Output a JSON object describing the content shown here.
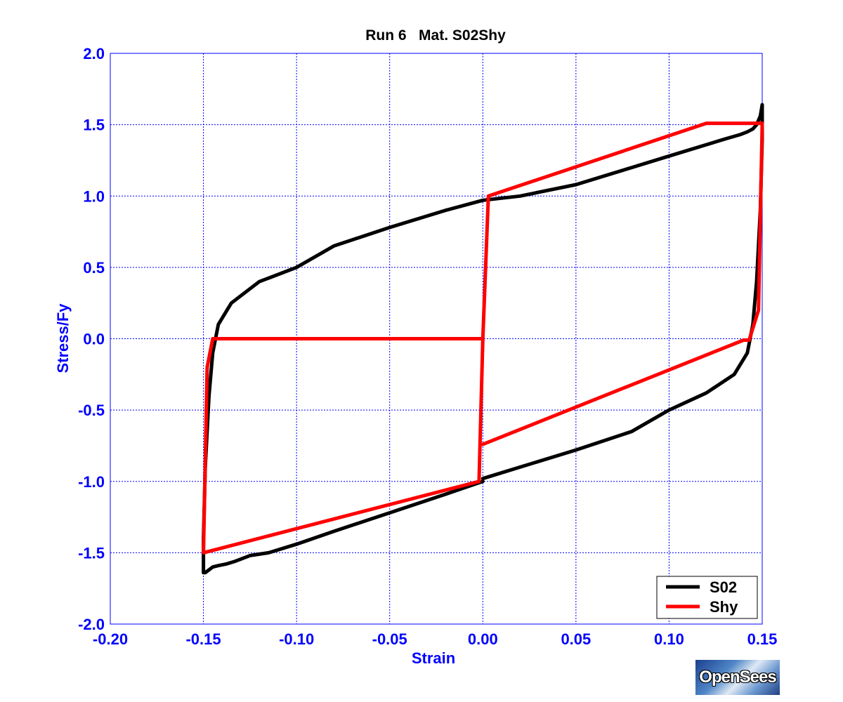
{
  "chart_data": {
    "type": "line",
    "title": "Run 6   Mat. S02Shy",
    "xlabel": "Strain",
    "ylabel": "Stress/Fy",
    "xlim": [
      -0.2,
      0.15
    ],
    "ylim": [
      -2.0,
      2.0
    ],
    "x_ticks": [
      -0.2,
      -0.15,
      -0.1,
      -0.05,
      0.0,
      0.05,
      0.1,
      0.15
    ],
    "x_tick_labels": [
      "-0.20",
      "-0.15",
      "-0.10",
      "-0.05",
      "0.00",
      "0.05",
      "0.10",
      "0.15"
    ],
    "y_ticks": [
      -2.0,
      -1.5,
      -1.0,
      -0.5,
      0.0,
      0.5,
      1.0,
      1.5,
      2.0
    ],
    "y_tick_labels": [
      "-2.0",
      "-1.5",
      "-1.0",
      "-0.5",
      "0.0",
      "0.5",
      "1.0",
      "1.5",
      "2.0"
    ],
    "grid": true,
    "legend_position": "bottom-right",
    "series": [
      {
        "name": "S02",
        "color": "#000000",
        "x": [
          0.0,
          0.02,
          0.05,
          0.08,
          0.1,
          0.12,
          0.135,
          0.142,
          0.145,
          0.147,
          0.149,
          0.15,
          0.15,
          0.149,
          0.147,
          0.145,
          0.142,
          0.138,
          0.13,
          0.12,
          0.1,
          0.08,
          0.05,
          0.02,
          0.0,
          -0.02,
          -0.05,
          -0.08,
          -0.1,
          -0.12,
          -0.135,
          -0.142,
          -0.145,
          -0.147,
          -0.149,
          -0.15,
          -0.15,
          -0.149,
          -0.147,
          -0.145,
          -0.142,
          -0.138,
          -0.133,
          -0.125,
          -0.115,
          -0.1,
          -0.08,
          -0.05,
          -0.02,
          0.0
        ],
        "y": [
          -0.98,
          -0.9,
          -0.78,
          -0.65,
          -0.5,
          -0.38,
          -0.25,
          -0.1,
          0.1,
          0.4,
          0.9,
          1.4,
          1.64,
          1.56,
          1.5,
          1.47,
          1.45,
          1.43,
          1.4,
          1.36,
          1.28,
          1.2,
          1.08,
          1.0,
          0.97,
          0.9,
          0.78,
          0.65,
          0.5,
          0.4,
          0.25,
          0.1,
          -0.1,
          -0.4,
          -0.9,
          -1.4,
          -1.64,
          -1.64,
          -1.62,
          -1.6,
          -1.59,
          -1.58,
          -1.56,
          -1.52,
          -1.5,
          -1.44,
          -1.35,
          -1.22,
          -1.09,
          -1.0
        ]
      },
      {
        "name": "Shy",
        "color": "#ff0000",
        "x": [
          0.0,
          0.14,
          0.143,
          0.148,
          0.15,
          0.15,
          0.12,
          0.003,
          0.0,
          -0.002,
          -0.002,
          -0.15,
          -0.15,
          -0.148,
          -0.145,
          0.0,
          0.0,
          0.003,
          0.12,
          0.15
        ],
        "y": [
          -0.74,
          -0.01,
          -0.01,
          0.2,
          1.5,
          1.51,
          1.51,
          1.0,
          0.0,
          -0.98,
          -1.0,
          -1.5,
          -1.5,
          -0.2,
          0.0,
          0.0,
          0.0,
          1.0,
          1.51,
          1.51
        ]
      }
    ]
  },
  "logo_text": "OpenSees"
}
